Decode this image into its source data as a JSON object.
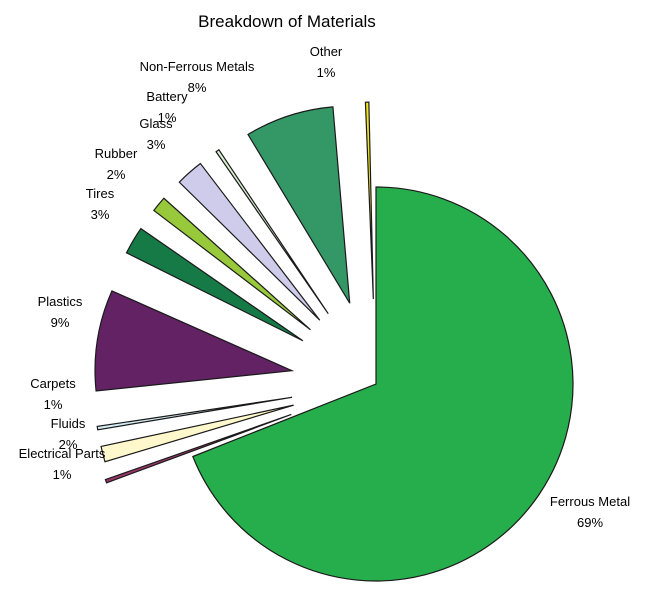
{
  "chart_data": {
    "type": "pie",
    "title": "Breakdown of Materials",
    "slices": [
      {
        "label": "Ferrous Metal",
        "value": 69,
        "display": "69%",
        "color": "#27ae4c"
      },
      {
        "label": "Electrical Parts",
        "value": 1,
        "display": "1%",
        "color": "#9b3567"
      },
      {
        "label": "Fluids",
        "value": 2,
        "display": "2%",
        "color": "#fff8cc"
      },
      {
        "label": "Carpets",
        "value": 1,
        "display": "1%",
        "color": "#d3ecf4"
      },
      {
        "label": "Plastics",
        "value": 9,
        "display": "9%",
        "color": "#622264"
      },
      {
        "label": "Tires",
        "value": 3,
        "display": "3%",
        "color": "#157a45"
      },
      {
        "label": "Rubber",
        "value": 2,
        "display": "2%",
        "color": "#98c93a"
      },
      {
        "label": "Glass",
        "value": 3,
        "display": "3%",
        "color": "#cfcbea"
      },
      {
        "label": "Battery",
        "value": 1,
        "display": "1%",
        "color": "#d7efd2"
      },
      {
        "label": "Non-Ferrous Metals",
        "value": 8,
        "display": "8%",
        "color": "#339866"
      },
      {
        "label": "Other",
        "value": 1,
        "display": "1%",
        "color": "#f1e51e"
      }
    ],
    "legend": "none"
  }
}
